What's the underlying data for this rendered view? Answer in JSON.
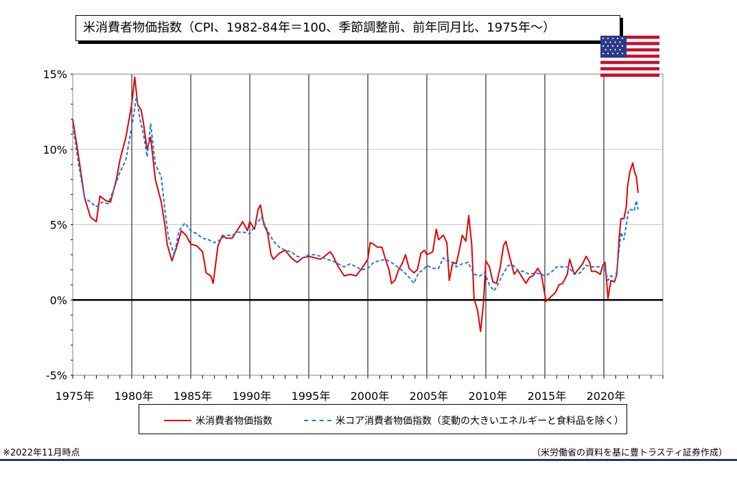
{
  "title": "米消費者物価指数（CPI、1982-84年＝100、季節調整前、前年同月比、1975年～）",
  "note_left": "※2022年11月時点",
  "note_right": "（米労働省の資料を基に豊トラスティ証券作成）",
  "flag_icon": "usa-flag-icon",
  "chart_data": {
    "type": "line",
    "title": "米消費者物価指数（CPI、1982-84年＝100、季節調整前、前年同月比、1975年～）",
    "xlabel": "",
    "ylabel": "",
    "xlim": [
      1975,
      2025
    ],
    "ylim": [
      -5,
      15
    ],
    "y_ticks": [
      -5,
      0,
      5,
      10,
      15
    ],
    "y_tick_labels": [
      "-5%",
      "0%",
      "5%",
      "10%",
      "15%"
    ],
    "x_ticks": [
      1975,
      1980,
      1985,
      1990,
      1995,
      2000,
      2005,
      2010,
      2015,
      2020
    ],
    "x_tick_labels": [
      "1975年",
      "1980年",
      "1985年",
      "1990年",
      "1995年",
      "2000年",
      "2005年",
      "2010年",
      "2015年",
      "2020年"
    ],
    "grid": "horizontal",
    "legend_position": "bottom",
    "series": [
      {
        "name": "米消費者物価指数",
        "color": "#e00000",
        "style": "solid",
        "points": [
          [
            1975.0,
            12.0
          ],
          [
            1975.5,
            9.5
          ],
          [
            1976.0,
            6.8
          ],
          [
            1976.5,
            5.5
          ],
          [
            1977.0,
            5.2
          ],
          [
            1977.3,
            6.9
          ],
          [
            1977.8,
            6.6
          ],
          [
            1978.2,
            6.5
          ],
          [
            1978.7,
            8.0
          ],
          [
            1979.0,
            9.3
          ],
          [
            1979.5,
            10.8
          ],
          [
            1980.0,
            13.0
          ],
          [
            1980.25,
            14.8
          ],
          [
            1980.5,
            13.0
          ],
          [
            1980.8,
            12.6
          ],
          [
            1981.0,
            11.7
          ],
          [
            1981.3,
            10.0
          ],
          [
            1981.6,
            10.8
          ],
          [
            1982.0,
            8.0
          ],
          [
            1982.5,
            6.5
          ],
          [
            1982.8,
            5.0
          ],
          [
            1983.0,
            3.7
          ],
          [
            1983.4,
            2.6
          ],
          [
            1983.8,
            3.5
          ],
          [
            1984.2,
            4.6
          ],
          [
            1984.6,
            4.3
          ],
          [
            1985.0,
            3.7
          ],
          [
            1985.5,
            3.6
          ],
          [
            1986.0,
            3.2
          ],
          [
            1986.3,
            1.8
          ],
          [
            1986.7,
            1.6
          ],
          [
            1986.9,
            1.1
          ],
          [
            1987.3,
            3.6
          ],
          [
            1987.7,
            4.3
          ],
          [
            1988.0,
            4.1
          ],
          [
            1988.5,
            4.1
          ],
          [
            1989.0,
            4.7
          ],
          [
            1989.4,
            5.2
          ],
          [
            1989.8,
            4.6
          ],
          [
            1990.0,
            5.2
          ],
          [
            1990.4,
            4.7
          ],
          [
            1990.7,
            6.0
          ],
          [
            1990.9,
            6.3
          ],
          [
            1991.2,
            5.0
          ],
          [
            1991.5,
            4.5
          ],
          [
            1991.8,
            3.0
          ],
          [
            1992.0,
            2.7
          ],
          [
            1992.5,
            3.1
          ],
          [
            1993.0,
            3.3
          ],
          [
            1993.5,
            2.8
          ],
          [
            1994.0,
            2.5
          ],
          [
            1994.5,
            2.8
          ],
          [
            1995.0,
            2.9
          ],
          [
            1995.5,
            2.8
          ],
          [
            1996.0,
            2.7
          ],
          [
            1996.5,
            3.0
          ],
          [
            1996.8,
            3.2
          ],
          [
            1997.0,
            3.0
          ],
          [
            1997.5,
            2.2
          ],
          [
            1998.0,
            1.6
          ],
          [
            1998.5,
            1.7
          ],
          [
            1999.0,
            1.6
          ],
          [
            1999.5,
            2.1
          ],
          [
            2000.0,
            2.7
          ],
          [
            2000.2,
            3.8
          ],
          [
            2000.5,
            3.7
          ],
          [
            2000.8,
            3.5
          ],
          [
            2001.2,
            3.5
          ],
          [
            2001.5,
            2.7
          ],
          [
            2001.8,
            2.0
          ],
          [
            2002.0,
            1.1
          ],
          [
            2002.3,
            1.3
          ],
          [
            2002.6,
            2.0
          ],
          [
            2002.9,
            2.4
          ],
          [
            2003.2,
            3.0
          ],
          [
            2003.5,
            2.1
          ],
          [
            2003.9,
            1.8
          ],
          [
            2004.2,
            2.0
          ],
          [
            2004.5,
            3.1
          ],
          [
            2004.8,
            3.3
          ],
          [
            2005.0,
            3.0
          ],
          [
            2005.5,
            3.2
          ],
          [
            2005.8,
            4.7
          ],
          [
            2006.0,
            4.0
          ],
          [
            2006.4,
            4.3
          ],
          [
            2006.7,
            3.8
          ],
          [
            2006.9,
            1.3
          ],
          [
            2007.2,
            2.5
          ],
          [
            2007.5,
            2.4
          ],
          [
            2007.8,
            3.5
          ],
          [
            2008.0,
            4.3
          ],
          [
            2008.3,
            3.9
          ],
          [
            2008.55,
            5.6
          ],
          [
            2008.8,
            3.7
          ],
          [
            2009.0,
            0.1
          ],
          [
            2009.3,
            -0.7
          ],
          [
            2009.55,
            -2.1
          ],
          [
            2009.8,
            -0.2
          ],
          [
            2010.0,
            2.6
          ],
          [
            2010.3,
            2.2
          ],
          [
            2010.6,
            1.2
          ],
          [
            2010.9,
            1.1
          ],
          [
            2011.2,
            2.1
          ],
          [
            2011.5,
            3.6
          ],
          [
            2011.7,
            3.9
          ],
          [
            2012.0,
            2.9
          ],
          [
            2012.4,
            1.7
          ],
          [
            2012.7,
            2.0
          ],
          [
            2013.0,
            1.6
          ],
          [
            2013.4,
            1.1
          ],
          [
            2013.7,
            1.5
          ],
          [
            2014.0,
            1.6
          ],
          [
            2014.4,
            2.1
          ],
          [
            2014.7,
            1.7
          ],
          [
            2014.9,
            0.8
          ],
          [
            2015.1,
            -0.1
          ],
          [
            2015.5,
            0.2
          ],
          [
            2015.9,
            0.5
          ],
          [
            2016.2,
            1.0
          ],
          [
            2016.5,
            1.1
          ],
          [
            2016.9,
            1.7
          ],
          [
            2017.1,
            2.7
          ],
          [
            2017.5,
            1.7
          ],
          [
            2017.9,
            2.1
          ],
          [
            2018.2,
            2.4
          ],
          [
            2018.5,
            2.9
          ],
          [
            2018.8,
            2.5
          ],
          [
            2018.95,
            1.9
          ],
          [
            2019.3,
            1.9
          ],
          [
            2019.7,
            1.7
          ],
          [
            2019.9,
            2.3
          ],
          [
            2020.1,
            2.5
          ],
          [
            2020.35,
            0.1
          ],
          [
            2020.6,
            1.3
          ],
          [
            2020.9,
            1.2
          ],
          [
            2021.1,
            1.7
          ],
          [
            2021.3,
            4.2
          ],
          [
            2021.45,
            5.4
          ],
          [
            2021.7,
            5.4
          ],
          [
            2021.9,
            6.2
          ],
          [
            2022.0,
            7.5
          ],
          [
            2022.2,
            8.5
          ],
          [
            2022.45,
            9.1
          ],
          [
            2022.6,
            8.5
          ],
          [
            2022.75,
            8.2
          ],
          [
            2022.9,
            7.1
          ]
        ]
      },
      {
        "name": "米コア消費者物価指数（変動の大きいエネルギーと食料品を除く）",
        "color": "#1f77e0",
        "style": "dashed",
        "points": [
          [
            1975.0,
            11.6
          ],
          [
            1975.5,
            9.0
          ],
          [
            1976.0,
            6.8
          ],
          [
            1976.5,
            6.5
          ],
          [
            1977.0,
            6.2
          ],
          [
            1977.5,
            6.5
          ],
          [
            1978.0,
            6.4
          ],
          [
            1978.5,
            7.4
          ],
          [
            1979.0,
            8.5
          ],
          [
            1979.5,
            9.3
          ],
          [
            1980.0,
            11.5
          ],
          [
            1980.4,
            13.5
          ],
          [
            1980.7,
            12.0
          ],
          [
            1981.0,
            11.0
          ],
          [
            1981.3,
            9.5
          ],
          [
            1981.6,
            11.7
          ],
          [
            1982.0,
            9.0
          ],
          [
            1982.5,
            8.2
          ],
          [
            1982.8,
            6.0
          ],
          [
            1983.1,
            4.2
          ],
          [
            1983.6,
            3.0
          ],
          [
            1984.0,
            4.6
          ],
          [
            1984.5,
            5.1
          ],
          [
            1985.0,
            4.6
          ],
          [
            1985.5,
            4.4
          ],
          [
            1986.0,
            4.1
          ],
          [
            1986.5,
            4.0
          ],
          [
            1987.0,
            3.8
          ],
          [
            1987.5,
            4.0
          ],
          [
            1988.0,
            4.3
          ],
          [
            1988.5,
            4.3
          ],
          [
            1989.0,
            4.5
          ],
          [
            1989.5,
            4.5
          ],
          [
            1990.0,
            4.4
          ],
          [
            1990.5,
            5.0
          ],
          [
            1991.0,
            5.5
          ],
          [
            1991.5,
            4.6
          ],
          [
            1992.0,
            3.9
          ],
          [
            1992.5,
            3.5
          ],
          [
            1993.0,
            3.3
          ],
          [
            1993.5,
            3.2
          ],
          [
            1994.0,
            2.9
          ],
          [
            1994.5,
            2.8
          ],
          [
            1995.0,
            3.0
          ],
          [
            1995.5,
            3.0
          ],
          [
            1996.0,
            2.9
          ],
          [
            1996.5,
            2.7
          ],
          [
            1997.0,
            2.6
          ],
          [
            1997.5,
            2.4
          ],
          [
            1998.0,
            2.2
          ],
          [
            1998.5,
            2.4
          ],
          [
            1999.0,
            2.2
          ],
          [
            1999.5,
            2.0
          ],
          [
            2000.0,
            2.1
          ],
          [
            2000.5,
            2.5
          ],
          [
            2001.0,
            2.6
          ],
          [
            2001.5,
            2.7
          ],
          [
            2002.0,
            2.5
          ],
          [
            2002.5,
            2.2
          ],
          [
            2003.0,
            1.9
          ],
          [
            2003.5,
            1.5
          ],
          [
            2003.9,
            1.1
          ],
          [
            2004.3,
            1.8
          ],
          [
            2004.7,
            2.0
          ],
          [
            2005.0,
            2.3
          ],
          [
            2005.5,
            2.1
          ],
          [
            2006.0,
            2.1
          ],
          [
            2006.4,
            2.8
          ],
          [
            2006.7,
            2.6
          ],
          [
            2007.0,
            2.6
          ],
          [
            2007.5,
            2.2
          ],
          [
            2008.0,
            2.4
          ],
          [
            2008.5,
            2.5
          ],
          [
            2009.0,
            1.7
          ],
          [
            2009.5,
            1.6
          ],
          [
            2009.9,
            1.8
          ],
          [
            2010.3,
            1.0
          ],
          [
            2010.7,
            0.6
          ],
          [
            2011.0,
            1.0
          ],
          [
            2011.5,
            1.8
          ],
          [
            2011.9,
            2.3
          ],
          [
            2012.3,
            2.3
          ],
          [
            2012.8,
            1.9
          ],
          [
            2013.2,
            1.9
          ],
          [
            2013.7,
            1.7
          ],
          [
            2014.2,
            1.8
          ],
          [
            2014.7,
            1.7
          ],
          [
            2015.0,
            1.6
          ],
          [
            2015.5,
            1.8
          ],
          [
            2016.0,
            2.2
          ],
          [
            2016.5,
            2.2
          ],
          [
            2017.0,
            2.2
          ],
          [
            2017.5,
            1.7
          ],
          [
            2018.0,
            1.8
          ],
          [
            2018.5,
            2.3
          ],
          [
            2019.0,
            2.2
          ],
          [
            2019.5,
            2.2
          ],
          [
            2020.0,
            2.3
          ],
          [
            2020.35,
            1.3
          ],
          [
            2020.6,
            1.6
          ],
          [
            2021.0,
            1.4
          ],
          [
            2021.25,
            3.0
          ],
          [
            2021.45,
            4.5
          ],
          [
            2021.7,
            4.0
          ],
          [
            2021.9,
            5.0
          ],
          [
            2022.1,
            6.0
          ],
          [
            2022.35,
            6.0
          ],
          [
            2022.55,
            5.9
          ],
          [
            2022.75,
            6.6
          ],
          [
            2022.9,
            6.0
          ]
        ]
      }
    ]
  }
}
